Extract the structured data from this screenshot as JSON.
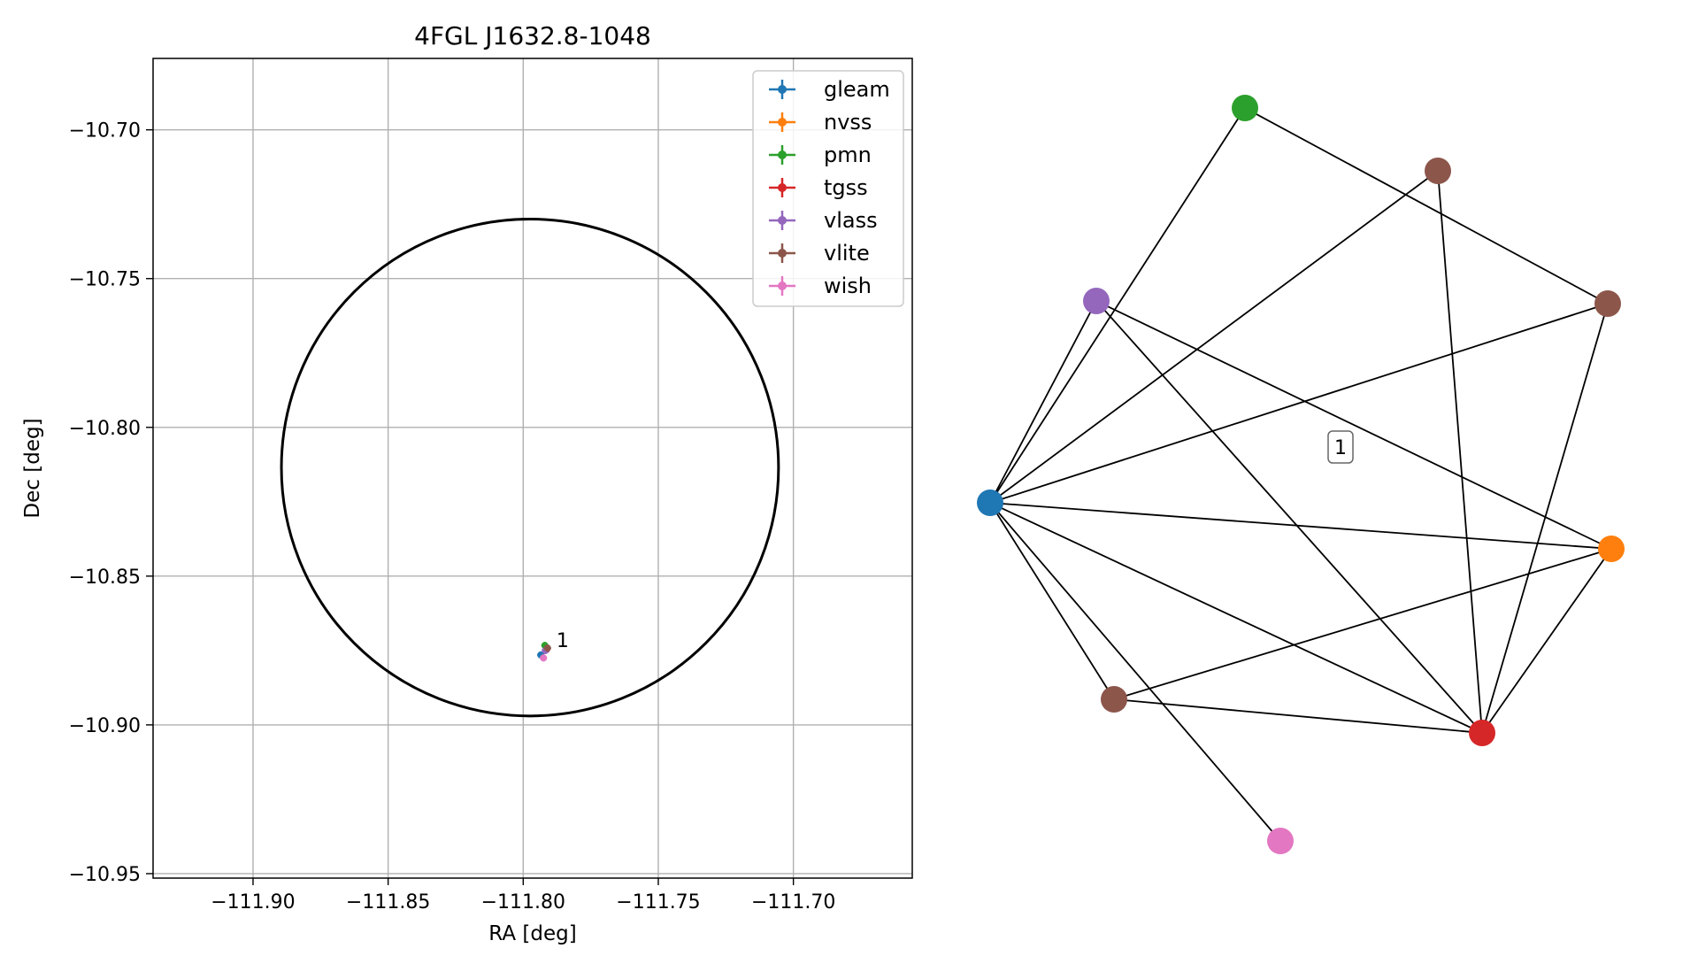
{
  "chart_data": [
    {
      "type": "scatter",
      "title": "4FGL J1632.8-1048",
      "xlabel": "RA [deg]",
      "ylabel": "Dec [deg]",
      "xlim": [
        -111.937,
        -111.656
      ],
      "ylim": [
        -10.9515,
        -10.676
      ],
      "x_ticks": [
        -111.9,
        -111.85,
        -111.8,
        -111.75,
        -111.7
      ],
      "x_tick_labels": [
        "−111.90",
        "−111.85",
        "−111.80",
        "−111.75",
        "−111.70"
      ],
      "y_ticks": [
        -10.7,
        -10.75,
        -10.8,
        -10.85,
        -10.9,
        -10.95
      ],
      "y_tick_labels": [
        "−10.70",
        "−10.75",
        "−10.80",
        "−10.85",
        "−10.90",
        "−10.95"
      ],
      "grid": true,
      "legend_position": "top-right",
      "ellipse": {
        "center": [
          -111.7975,
          -10.8135
        ],
        "ra_radius": 0.092,
        "dec_radius": 0.0835,
        "color": "#000000"
      },
      "series": [
        {
          "name": "gleam",
          "color": "#1f77b4",
          "points": [
            [
              -111.7935,
              -10.8765
            ]
          ]
        },
        {
          "name": "nvss",
          "color": "#ff7f0e",
          "points": [
            [
              -111.7915,
              -10.8745
            ]
          ]
        },
        {
          "name": "pmn",
          "color": "#2ca02c",
          "points": [
            [
              -111.792,
              -10.8733
            ]
          ]
        },
        {
          "name": "tgss",
          "color": "#d62728",
          "points": [
            [
              -111.7915,
              -10.8748
            ]
          ]
        },
        {
          "name": "vlass",
          "color": "#9467bd",
          "points": [
            [
              -111.7918,
              -10.875
            ]
          ]
        },
        {
          "name": "vlite",
          "color": "#8c564b",
          "points": [
            [
              -111.791,
              -10.8742
            ]
          ]
        },
        {
          "name": "wish",
          "color": "#e377c2",
          "points": [
            [
              -111.7925,
              -10.8775
            ]
          ]
        }
      ],
      "annotations": [
        {
          "text": "1",
          "x": -111.789,
          "y": -10.8715
        }
      ]
    },
    {
      "type": "network",
      "cluster_label": "1",
      "nodes": [
        {
          "id": "gleam",
          "color": "#1f77b4"
        },
        {
          "id": "pmn",
          "color": "#2ca02c"
        },
        {
          "id": "vlite_a",
          "color": "#8c564b"
        },
        {
          "id": "vlass",
          "color": "#9467bd"
        },
        {
          "id": "vlite_b",
          "color": "#8c564b"
        },
        {
          "id": "nvss",
          "color": "#ff7f0e"
        },
        {
          "id": "tgss",
          "color": "#d62728"
        },
        {
          "id": "vlite_c",
          "color": "#8c564b"
        },
        {
          "id": "wish",
          "color": "#e377c2"
        }
      ],
      "edges": [
        [
          "gleam",
          "pmn"
        ],
        [
          "gleam",
          "vlite_a"
        ],
        [
          "gleam",
          "vlass"
        ],
        [
          "gleam",
          "vlite_b"
        ],
        [
          "gleam",
          "nvss"
        ],
        [
          "gleam",
          "tgss"
        ],
        [
          "gleam",
          "vlite_c"
        ],
        [
          "gleam",
          "wish"
        ],
        [
          "pmn",
          "vlite_b"
        ],
        [
          "vlite_a",
          "tgss"
        ],
        [
          "vlass",
          "nvss"
        ],
        [
          "vlass",
          "tgss"
        ],
        [
          "vlite_b",
          "tgss"
        ],
        [
          "nvss",
          "tgss"
        ],
        [
          "nvss",
          "vlite_c"
        ],
        [
          "vlite_c",
          "tgss"
        ]
      ]
    }
  ]
}
